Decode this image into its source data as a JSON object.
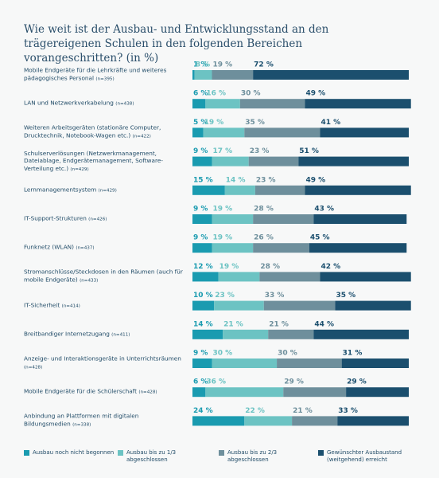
{
  "chart_data": {
    "type": "stacked-bar-horizontal",
    "title": "Wie weit ist der Ausbau- und Entwicklungsstand an den trägereigenen Schulen in den folgenden Bereichen vorangeschritten? (in %)",
    "categories": [
      "Mobile Endgeräte für die Lehrkräfte und weiteres pädagogisches Personal",
      "LAN und Netzwerkverkabelung",
      "Weiteren Arbeitsgeräten (stationäre Computer, Drucktechnik, Notebook-Wagen etc.)",
      "Schulserverlösungen (Netzwerkmanagement, Dateiablage, Endgerätemanagement, Software-Verteilung etc.)",
      "Lernmanagementsystem",
      "IT-Support-Strukturen",
      "Funknetz (WLAN)",
      "Stromanschlüsse/Steckdosen in den Räumen (auch für mobile Endgeräte)",
      "IT-Sicherheit",
      "Breitbandiger Internetzugang",
      "Anzeige- und Interaktionsgeräte in Unterrichtsräumen",
      "Mobile Endgeräte für die Schülerschaft",
      "Anbindung an Plattformen mit digitalen Bildungsmedien"
    ],
    "n_labels": [
      "(n=395)",
      "(n=438)",
      "(n=422)",
      "(n=429)",
      "(n=429)",
      "(n=426)",
      "(n=437)",
      "(n=433)",
      "(n=414)",
      "(n=411)",
      "(n=428)",
      "(n=428)",
      "(n=338)"
    ],
    "xlim": [
      0,
      100
    ],
    "series": [
      {
        "name": "Ausbau noch nicht begonnen",
        "color": "#1a9bb0",
        "values": [
          1,
          6,
          5,
          9,
          15,
          9,
          9,
          12,
          10,
          14,
          9,
          6,
          24
        ],
        "value_labels": [
          "1 %",
          "6 %",
          "5 %",
          "9 %",
          "15 %",
          "9 %",
          "9 %",
          "12 %",
          "10 %",
          "14 %",
          "9 %",
          "6 %",
          "24 %"
        ]
      },
      {
        "name": "Ausbau bis zu 1/3 abgeschlossen",
        "color": "#6cc3c3",
        "values": [
          8,
          16,
          19,
          17,
          14,
          19,
          19,
          19,
          23,
          21,
          30,
          36,
          22
        ],
        "value_labels": [
          "8 %",
          "16 %",
          "19 %",
          "17 %",
          "14 %",
          "19 %",
          "19 %",
          "19 %",
          "23 %",
          "21 %",
          "30 %",
          "36 %",
          "22 %"
        ]
      },
      {
        "name": "Ausbau bis zu 2/3 abgeschlossen",
        "color": "#6e8f9c",
        "values": [
          19,
          30,
          35,
          23,
          23,
          28,
          26,
          28,
          33,
          21,
          30,
          29,
          21
        ],
        "value_labels": [
          "19 %",
          "30 %",
          "35 %",
          "23 %",
          "23 %",
          "28 %",
          "26 %",
          "28 %",
          "33 %",
          "21 %",
          "30 %",
          "29 %",
          "21 %"
        ]
      },
      {
        "name": "Gewünschter Ausbaustand (weitgehend) erreicht",
        "color": "#1b4f6e",
        "values": [
          72,
          49,
          41,
          51,
          49,
          43,
          45,
          42,
          35,
          44,
          31,
          29,
          33
        ],
        "value_labels": [
          "72 %",
          "49 %",
          "41 %",
          "51 %",
          "49 %",
          "43 %",
          "45 %",
          "42 %",
          "35 %",
          "44 %",
          "31 %",
          "29 %",
          "33 %"
        ]
      }
    ]
  }
}
